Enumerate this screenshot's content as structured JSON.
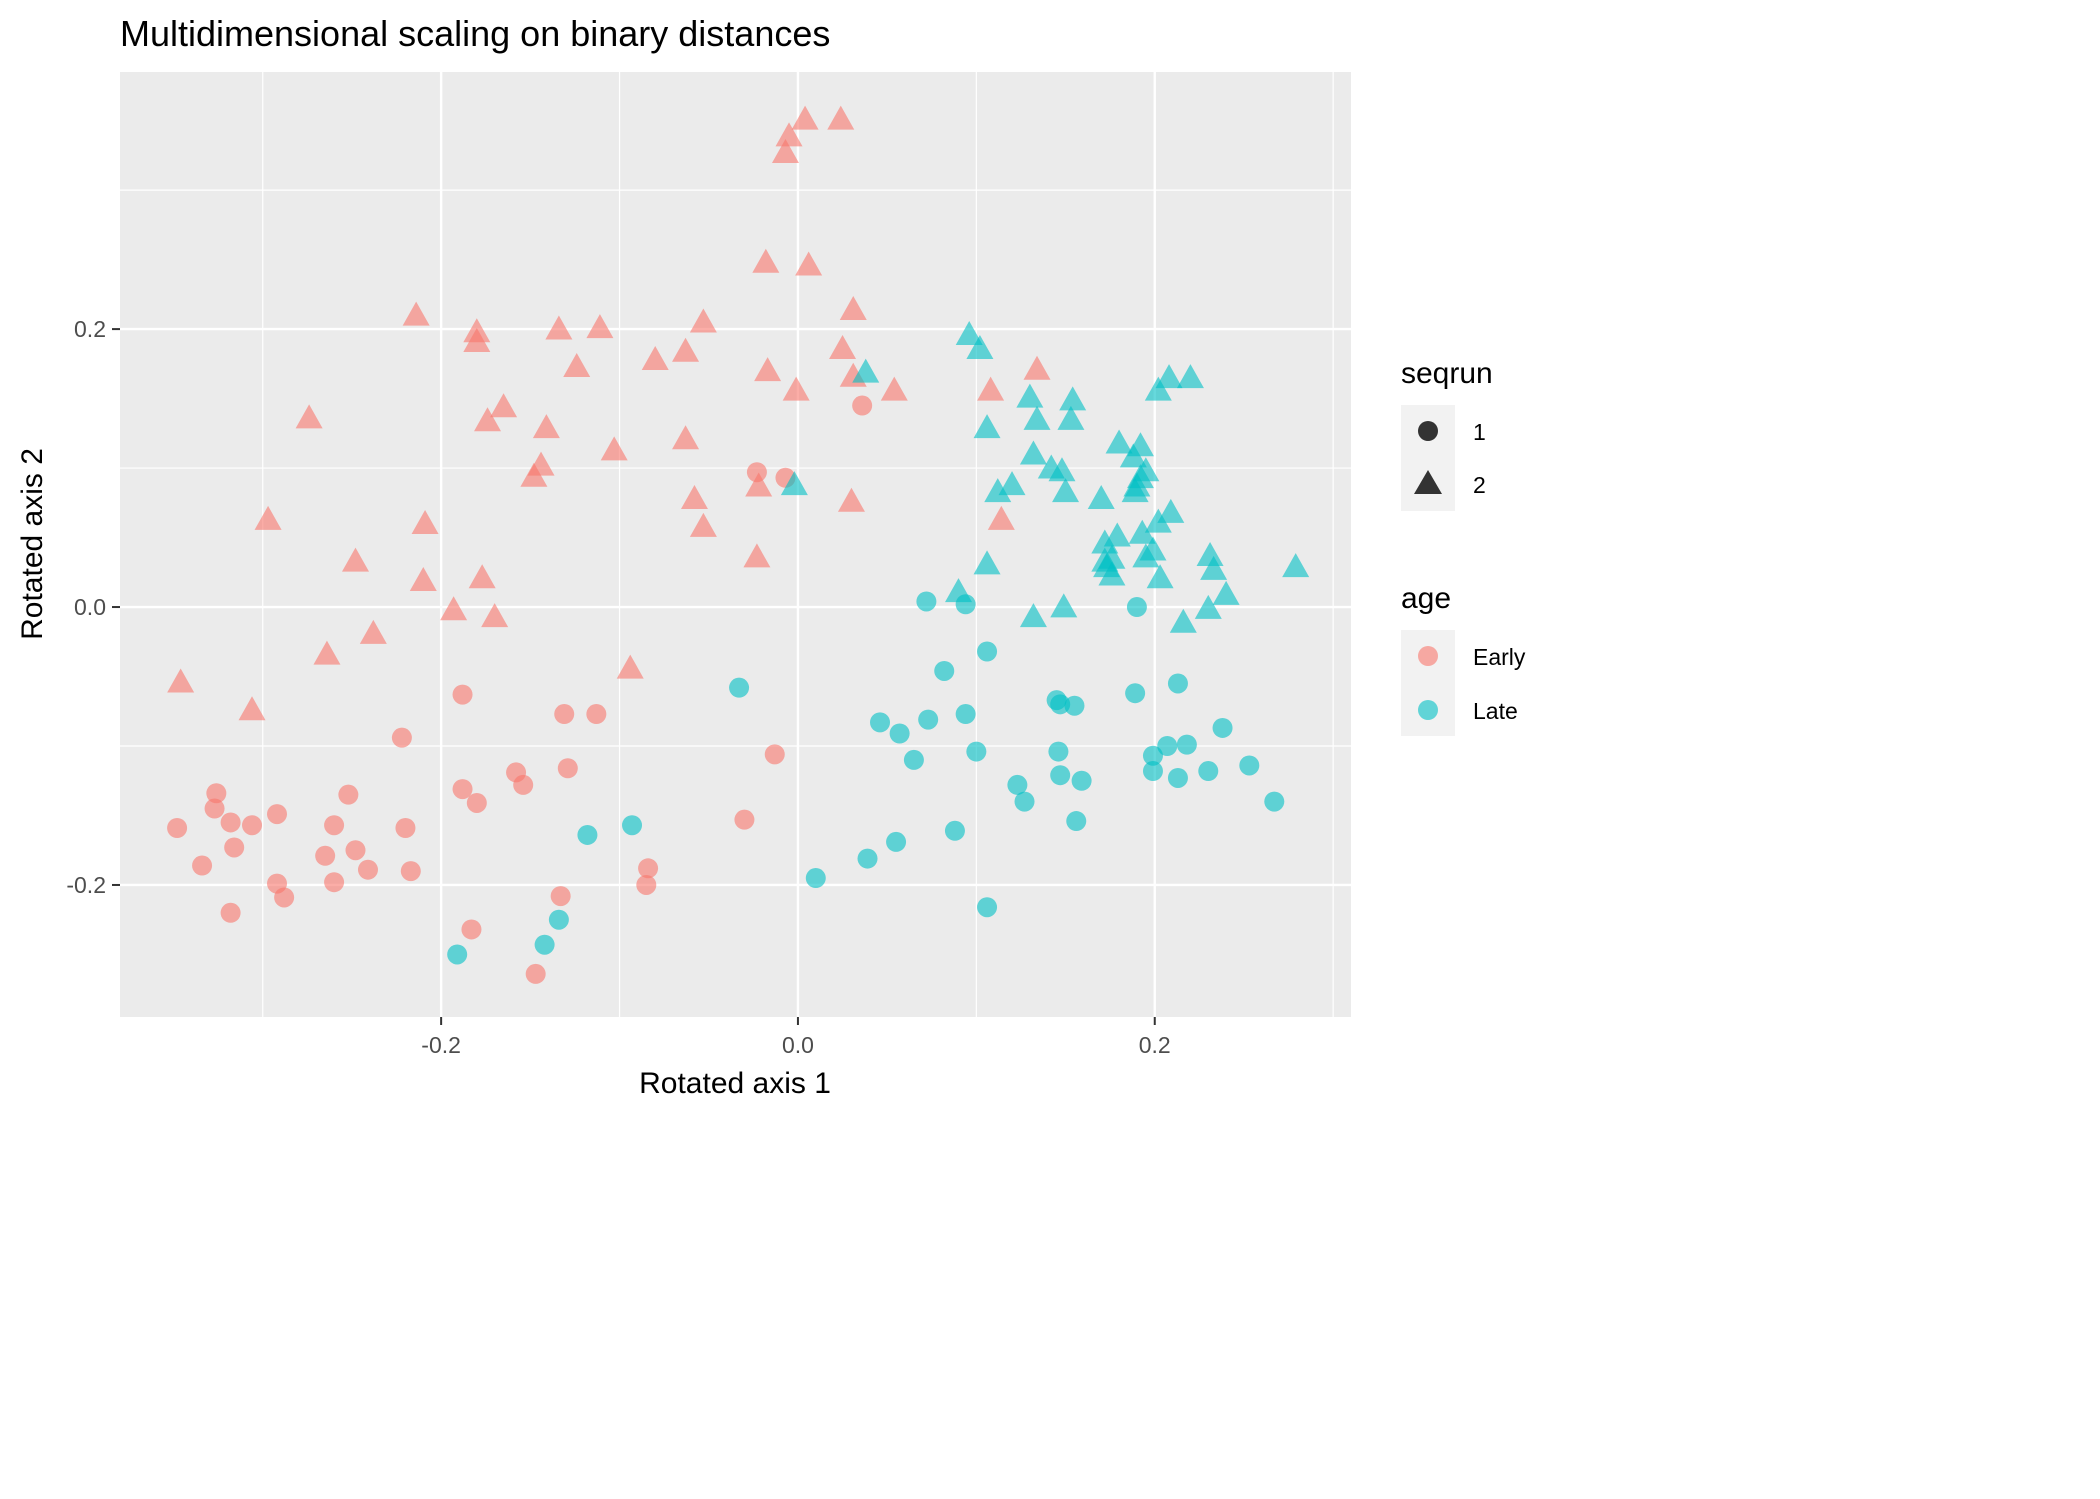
{
  "chart_data": {
    "type": "scatter",
    "title": "Multidimensional scaling on binary distances",
    "xlabel": "Rotated axis 1",
    "ylabel": "Rotated axis 2",
    "xlim": [
      -0.38,
      0.31
    ],
    "ylim": [
      -0.295,
      0.385
    ],
    "xticks": [
      -0.2,
      0.0,
      0.2
    ],
    "yticks": [
      -0.2,
      0.0,
      0.2
    ],
    "xtick_labels": [
      "-0.2",
      "0.0",
      "0.2"
    ],
    "ytick_labels": [
      "-0.2",
      "0.0",
      "0.2"
    ],
    "grid": true,
    "legend": {
      "position": "right",
      "shape_title": "seqrun",
      "shape_entries": [
        {
          "label": "1",
          "shape": "circle"
        },
        {
          "label": "2",
          "shape": "triangle"
        }
      ],
      "color_title": "age",
      "color_entries": [
        {
          "label": "Early",
          "color": "#F8766D"
        },
        {
          "label": "Late",
          "color": "#00BFC4"
        }
      ]
    },
    "series": [
      {
        "name": "Early",
        "shape": "circle",
        "color": "#F8766D",
        "points": [
          [
            -0.348,
            -0.159
          ],
          [
            -0.334,
            -0.186
          ],
          [
            -0.326,
            -0.134
          ],
          [
            -0.327,
            -0.145
          ],
          [
            -0.318,
            -0.155
          ],
          [
            -0.316,
            -0.173
          ],
          [
            -0.318,
            -0.22
          ],
          [
            -0.306,
            -0.157
          ],
          [
            -0.292,
            -0.149
          ],
          [
            -0.292,
            -0.199
          ],
          [
            -0.288,
            -0.209
          ],
          [
            -0.265,
            -0.179
          ],
          [
            -0.26,
            -0.157
          ],
          [
            -0.26,
            -0.198
          ],
          [
            -0.252,
            -0.135
          ],
          [
            -0.248,
            -0.175
          ],
          [
            -0.241,
            -0.189
          ],
          [
            -0.222,
            -0.094
          ],
          [
            -0.22,
            -0.159
          ],
          [
            -0.217,
            -0.19
          ],
          [
            -0.188,
            -0.063
          ],
          [
            -0.188,
            -0.131
          ],
          [
            -0.18,
            -0.141
          ],
          [
            -0.183,
            -0.232
          ],
          [
            -0.158,
            -0.119
          ],
          [
            -0.154,
            -0.128
          ],
          [
            -0.147,
            -0.264
          ],
          [
            -0.131,
            -0.077
          ],
          [
            -0.129,
            -0.116
          ],
          [
            -0.133,
            -0.208
          ],
          [
            -0.113,
            -0.077
          ],
          [
            -0.084,
            -0.188
          ],
          [
            -0.085,
            -0.2
          ],
          [
            -0.03,
            -0.153
          ],
          [
            -0.023,
            0.097
          ],
          [
            -0.007,
            0.093
          ],
          [
            -0.013,
            -0.106
          ],
          [
            0.036,
            0.145
          ]
        ]
      },
      {
        "name": "Late",
        "shape": "circle",
        "color": "#00BFC4",
        "points": [
          [
            -0.191,
            -0.25
          ],
          [
            -0.142,
            -0.243
          ],
          [
            -0.134,
            -0.225
          ],
          [
            -0.118,
            -0.164
          ],
          [
            -0.093,
            -0.157
          ],
          [
            -0.033,
            -0.058
          ],
          [
            0.01,
            -0.195
          ],
          [
            0.039,
            -0.181
          ],
          [
            0.046,
            -0.083
          ],
          [
            0.055,
            -0.169
          ],
          [
            0.057,
            -0.091
          ],
          [
            0.065,
            -0.11
          ],
          [
            0.073,
            -0.081
          ],
          [
            0.072,
            0.004
          ],
          [
            0.082,
            -0.046
          ],
          [
            0.088,
            -0.161
          ],
          [
            0.094,
            -0.077
          ],
          [
            0.094,
            0.002
          ],
          [
            0.1,
            -0.104
          ],
          [
            0.106,
            -0.032
          ],
          [
            0.106,
            -0.216
          ],
          [
            0.123,
            -0.128
          ],
          [
            0.127,
            -0.14
          ],
          [
            0.145,
            -0.067
          ],
          [
            0.147,
            -0.07
          ],
          [
            0.146,
            -0.104
          ],
          [
            0.147,
            -0.121
          ],
          [
            0.155,
            -0.071
          ],
          [
            0.159,
            -0.125
          ],
          [
            0.156,
            -0.154
          ],
          [
            0.19,
            0.0
          ],
          [
            0.189,
            -0.062
          ],
          [
            0.199,
            -0.107
          ],
          [
            0.199,
            -0.118
          ],
          [
            0.207,
            -0.1
          ],
          [
            0.213,
            -0.055
          ],
          [
            0.213,
            -0.123
          ],
          [
            0.218,
            -0.099
          ],
          [
            0.23,
            -0.118
          ],
          [
            0.238,
            -0.087
          ],
          [
            0.253,
            -0.114
          ],
          [
            0.267,
            -0.14
          ]
        ]
      },
      {
        "name": "Early",
        "shape": "triangle",
        "color": "#F8766D",
        "points": [
          [
            -0.346,
            -0.055
          ],
          [
            -0.306,
            -0.075
          ],
          [
            -0.297,
            0.062
          ],
          [
            -0.274,
            0.135
          ],
          [
            -0.264,
            -0.035
          ],
          [
            -0.248,
            0.032
          ],
          [
            -0.238,
            -0.02
          ],
          [
            -0.214,
            0.209
          ],
          [
            -0.209,
            0.059
          ],
          [
            -0.21,
            0.018
          ],
          [
            -0.193,
            -0.003
          ],
          [
            -0.18,
            0.197
          ],
          [
            -0.18,
            0.19
          ],
          [
            -0.177,
            0.02
          ],
          [
            -0.174,
            0.133
          ],
          [
            -0.17,
            -0.008
          ],
          [
            -0.165,
            0.143
          ],
          [
            -0.148,
            0.093
          ],
          [
            -0.144,
            0.101
          ],
          [
            -0.141,
            0.128
          ],
          [
            -0.134,
            0.199
          ],
          [
            -0.124,
            0.172
          ],
          [
            -0.111,
            0.2
          ],
          [
            -0.103,
            0.112
          ],
          [
            -0.094,
            -0.045
          ],
          [
            -0.08,
            0.177
          ],
          [
            -0.063,
            0.183
          ],
          [
            -0.063,
            0.12
          ],
          [
            -0.058,
            0.077
          ],
          [
            -0.053,
            0.204
          ],
          [
            -0.053,
            0.057
          ],
          [
            -0.023,
            0.035
          ],
          [
            -0.022,
            0.086
          ],
          [
            -0.018,
            0.247
          ],
          [
            -0.017,
            0.169
          ],
          [
            -0.007,
            0.326
          ],
          [
            -0.005,
            0.338
          ],
          [
            -0.001,
            0.155
          ],
          [
            0.004,
            0.35
          ],
          [
            0.006,
            0.245
          ],
          [
            0.024,
            0.35
          ],
          [
            0.025,
            0.185
          ],
          [
            0.03,
            0.075
          ],
          [
            0.031,
            0.165
          ],
          [
            0.031,
            0.213
          ],
          [
            0.054,
            0.155
          ],
          [
            0.108,
            0.155
          ],
          [
            0.114,
            0.062
          ],
          [
            0.134,
            0.17
          ]
        ]
      },
      {
        "name": "Late",
        "shape": "triangle",
        "color": "#00BFC4",
        "points": [
          [
            -0.002,
            0.087
          ],
          [
            0.038,
            0.168
          ],
          [
            0.09,
            0.01
          ],
          [
            0.096,
            0.195
          ],
          [
            0.102,
            0.185
          ],
          [
            0.106,
            0.128
          ],
          [
            0.106,
            0.03
          ],
          [
            0.112,
            0.082
          ],
          [
            0.12,
            0.087
          ],
          [
            0.13,
            0.15
          ],
          [
            0.132,
            0.109
          ],
          [
            0.134,
            0.134
          ],
          [
            0.132,
            -0.008
          ],
          [
            0.142,
            0.099
          ],
          [
            0.148,
            0.097
          ],
          [
            0.15,
            0.082
          ],
          [
            0.149,
            -0.001
          ],
          [
            0.153,
            0.134
          ],
          [
            0.154,
            0.148
          ],
          [
            0.17,
            0.077
          ],
          [
            0.172,
            0.045
          ],
          [
            0.172,
            0.032
          ],
          [
            0.173,
            0.028
          ],
          [
            0.176,
            0.034
          ],
          [
            0.176,
            0.022
          ],
          [
            0.179,
            0.05
          ],
          [
            0.18,
            0.117
          ],
          [
            0.188,
            0.107
          ],
          [
            0.189,
            0.082
          ],
          [
            0.19,
            0.086
          ],
          [
            0.192,
            0.115
          ],
          [
            0.192,
            0.092
          ],
          [
            0.193,
            0.052
          ],
          [
            0.195,
            0.035
          ],
          [
            0.195,
            0.097
          ],
          [
            0.199,
            0.04
          ],
          [
            0.202,
            0.155
          ],
          [
            0.202,
            0.06
          ],
          [
            0.203,
            0.02
          ],
          [
            0.208,
            0.164
          ],
          [
            0.209,
            0.067
          ],
          [
            0.216,
            -0.012
          ],
          [
            0.22,
            0.164
          ],
          [
            0.23,
            -0.002
          ],
          [
            0.231,
            0.036
          ],
          [
            0.233,
            0.026
          ],
          [
            0.24,
            0.008
          ],
          [
            0.279,
            0.028
          ]
        ]
      }
    ]
  }
}
